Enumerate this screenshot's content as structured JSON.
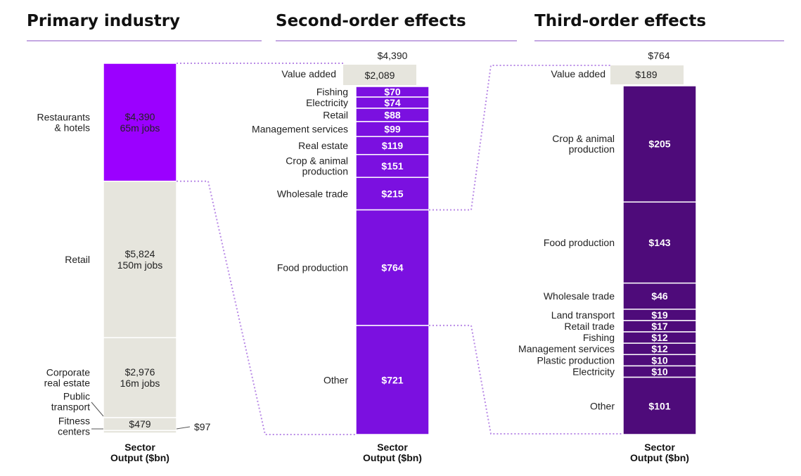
{
  "chart_data": [
    {
      "type": "bar",
      "title": "Primary industry",
      "xlabel": [
        "Sector",
        "Output ($bn)"
      ],
      "colors": {
        "highlight": "#9b00ff",
        "base": "#e6e5dd"
      },
      "segments": [
        {
          "label": [
            "Restaurants",
            "& hotels"
          ],
          "value": 4390,
          "value_text": "$4,390",
          "jobs_text": "65m jobs",
          "highlight": true
        },
        {
          "label": [
            "Retail"
          ],
          "value": 5824,
          "value_text": "$5,824",
          "jobs_text": "150m jobs",
          "highlight": false
        },
        {
          "label": [
            "Corporate",
            "real estate"
          ],
          "value": 2976,
          "value_text": "$2,976",
          "jobs_text": "16m jobs",
          "highlight": false
        },
        {
          "label": [
            "Public",
            "transport"
          ],
          "value": 479,
          "value_text": "$479",
          "jobs_text": "",
          "highlight": false
        },
        {
          "label": [
            "Fitness",
            "centers"
          ],
          "value": 97,
          "value_text": "$97",
          "jobs_text": "",
          "highlight": false
        }
      ]
    },
    {
      "type": "bar",
      "title": "Second-order effects",
      "total_text": "$4,390",
      "xlabel": [
        "Sector",
        "Output ($bn)"
      ],
      "colors": {
        "bar": "#7b10e0",
        "value_added": "#e6e5dd"
      },
      "value_added": {
        "label": "Value added",
        "value": 2089,
        "value_text": "$2,089"
      },
      "segments": [
        {
          "label": [
            "Fishing"
          ],
          "value": 70,
          "value_text": "$70"
        },
        {
          "label": [
            "Electricity"
          ],
          "value": 74,
          "value_text": "$74"
        },
        {
          "label": [
            "Retail"
          ],
          "value": 88,
          "value_text": "$88"
        },
        {
          "label": [
            "Management services"
          ],
          "value": 99,
          "value_text": "$99"
        },
        {
          "label": [
            "Real estate"
          ],
          "value": 119,
          "value_text": "$119"
        },
        {
          "label": [
            "Crop & animal",
            "production"
          ],
          "value": 151,
          "value_text": "$151"
        },
        {
          "label": [
            "Wholesale trade"
          ],
          "value": 215,
          "value_text": "$215"
        },
        {
          "label": [
            "Food production"
          ],
          "value": 764,
          "value_text": "$764"
        },
        {
          "label": [
            "Other"
          ],
          "value": 721,
          "value_text": "$721"
        }
      ]
    },
    {
      "type": "bar",
      "title": "Third-order effects",
      "total_text": "$764",
      "xlabel": [
        "Sector",
        "Output ($bn)"
      ],
      "colors": {
        "bar": "#4e0b7a",
        "value_added": "#e6e5dd"
      },
      "value_added": {
        "label": "Value added",
        "value": 189,
        "value_text": "$189"
      },
      "segments": [
        {
          "label": [
            "Crop & animal",
            "production"
          ],
          "value": 205,
          "value_text": "$205"
        },
        {
          "label": [
            "Food production"
          ],
          "value": 143,
          "value_text": "$143"
        },
        {
          "label": [
            "Wholesale trade"
          ],
          "value": 46,
          "value_text": "$46"
        },
        {
          "label": [
            "Land transport"
          ],
          "value": 19,
          "value_text": "$19"
        },
        {
          "label": [
            "Retail trade"
          ],
          "value": 17,
          "value_text": "$17"
        },
        {
          "label": [
            "Fishing"
          ],
          "value": 12,
          "value_text": "$12"
        },
        {
          "label": [
            "Management services"
          ],
          "value": 12,
          "value_text": "$12"
        },
        {
          "label": [
            "Plastic production"
          ],
          "value": 10,
          "value_text": "$10"
        },
        {
          "label": [
            "Electricity"
          ],
          "value": 10,
          "value_text": "$10"
        },
        {
          "label": [
            "Other"
          ],
          "value": 101,
          "value_text": "$101"
        }
      ]
    }
  ],
  "colors": {
    "rule": "#8a4fc4",
    "connector": "#b98ae6"
  }
}
